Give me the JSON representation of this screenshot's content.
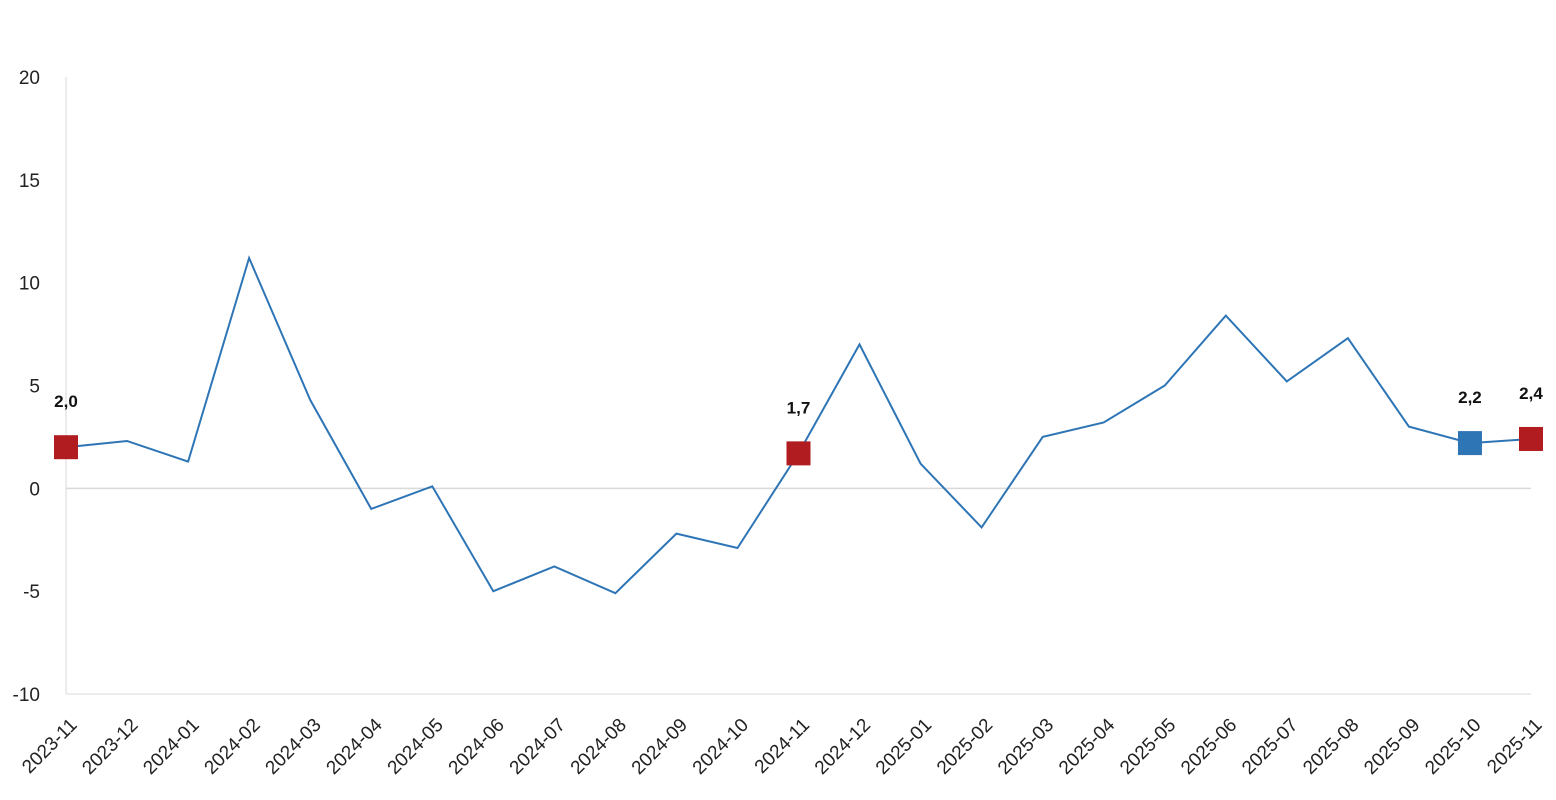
{
  "chart_data": {
    "type": "line",
    "title": "",
    "xlabel": "",
    "ylabel": "",
    "ylim": [
      -10,
      20
    ],
    "yticks": [
      20,
      15,
      10,
      5,
      0,
      -5,
      -10
    ],
    "ytick_labels": [
      "20",
      "15",
      "10",
      "5",
      "0",
      "-5",
      "-10"
    ],
    "grid": false,
    "categories": [
      "2023-11",
      "2023-12",
      "2024-01",
      "2024-02",
      "2024-03",
      "2024-04",
      "2024-05",
      "2024-06",
      "2024-07",
      "2024-08",
      "2024-09",
      "2024-10",
      "2024-11",
      "2024-12",
      "2025-01",
      "2025-02",
      "2025-03",
      "2025-04",
      "2025-05",
      "2025-06",
      "2025-07",
      "2025-08",
      "2025-09",
      "2025-10",
      "2025-11"
    ],
    "series": [
      {
        "color": "#2e75b6",
        "values": [
          2.0,
          2.3,
          1.3,
          11.2,
          4.3,
          -1.0,
          0.1,
          -5.0,
          -3.8,
          -5.1,
          -2.2,
          -2.9,
          1.7,
          7.0,
          1.2,
          -1.9,
          2.5,
          3.2,
          5.0,
          8.4,
          5.2,
          7.3,
          3.0,
          2.2,
          2.4
        ]
      }
    ],
    "highlights": [
      {
        "index": 0,
        "label": "2,0",
        "color": "#b01c1f"
      },
      {
        "index": 12,
        "label": "1,7",
        "color": "#b01c1f"
      },
      {
        "index": 23,
        "label": "2,2",
        "color": "#2e75b6"
      },
      {
        "index": 24,
        "label": "2,4",
        "color": "#b01c1f"
      }
    ],
    "axis_color": "#d9d9d9"
  }
}
